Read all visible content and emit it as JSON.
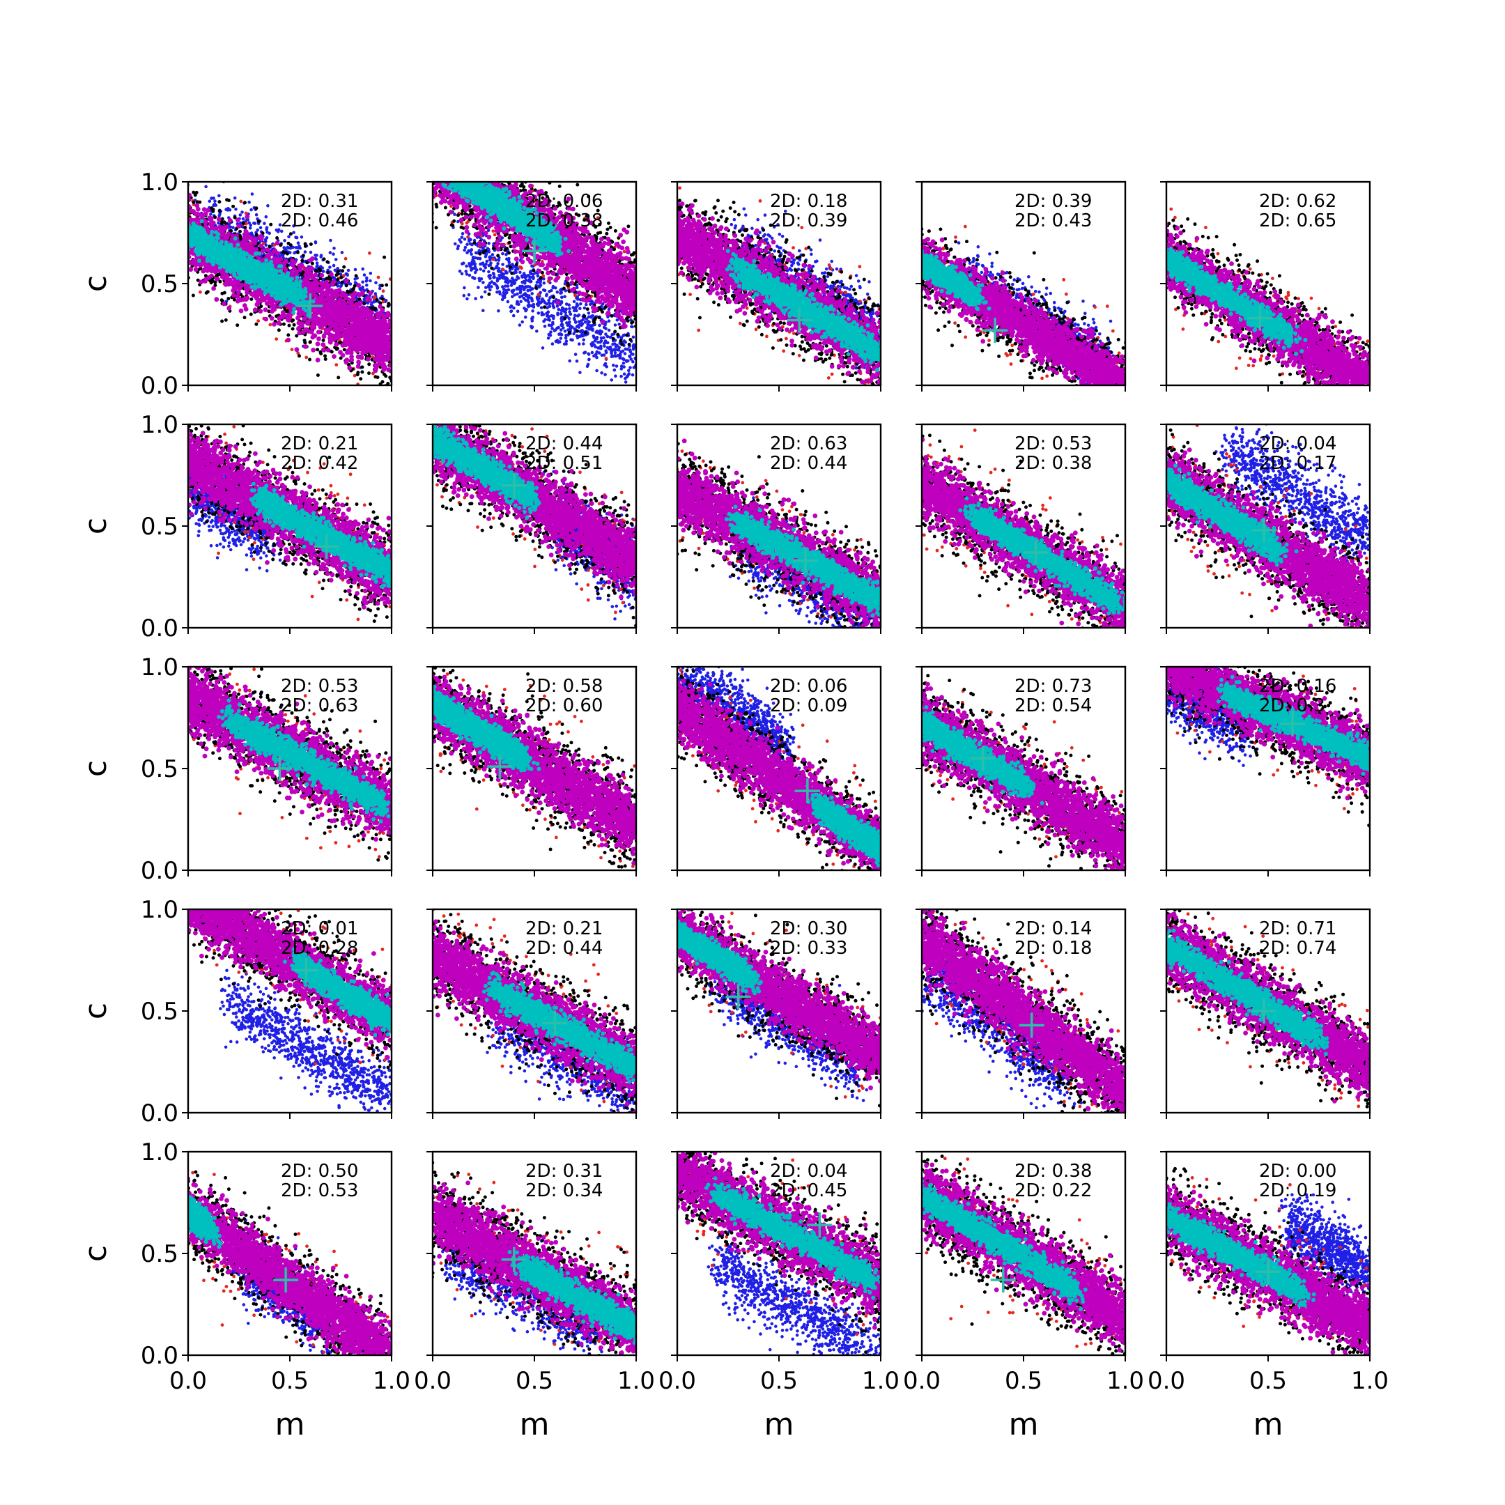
{
  "chart_data": {
    "type": "scatter",
    "layout": "5x5 grid of subplots",
    "xlabel": "m",
    "ylabel": "c",
    "xlim": [
      0.0,
      1.0
    ],
    "ylim": [
      0.0,
      1.0
    ],
    "xticks": [
      "0.0",
      "0.5",
      "1.0"
    ],
    "yticks": [
      "0.0",
      "0.5",
      "1.0"
    ],
    "grid": false,
    "series_colors": {
      "blue": "#1f1fe6",
      "red": "#e6261f",
      "black": "#000000",
      "magenta": "#bf00bf",
      "cyan": "#00bfbf",
      "marker_cross": "#2bbfaa"
    },
    "panels": [
      {
        "row": 0,
        "col": 0,
        "ann1": "2D: 0.31",
        "ann2": "2D: 0.46",
        "slope": -0.55,
        "icpt": 0.74,
        "width": 0.25,
        "cyan_x": [
          0.0,
          0.55
        ],
        "blue_shift": 0.12,
        "blue_x": [
          0.1,
          0.95
        ],
        "cross": [
          0.6,
          0.39
        ]
      },
      {
        "row": 0,
        "col": 1,
        "ann1": "2D: 0.06",
        "ann2": "2D: 0.38",
        "slope": -0.65,
        "icpt": 1.1,
        "width": 0.27,
        "cyan_x": [
          0.0,
          0.6
        ],
        "blue_shift": -0.32,
        "blue_x": [
          0.15,
          1.0
        ],
        "cross": [
          0.5,
          0.66
        ]
      },
      {
        "row": 0,
        "col": 2,
        "ann1": "2D: 0.18",
        "ann2": "2D: 0.39",
        "slope": -0.58,
        "icpt": 0.74,
        "width": 0.25,
        "cyan_x": [
          0.3,
          1.0
        ],
        "blue_shift": 0.1,
        "blue_x": [
          0.3,
          1.0
        ],
        "cross": [
          0.6,
          0.32
        ]
      },
      {
        "row": 0,
        "col": 3,
        "ann1": "2D: 0.39",
        "ann2": "2D: 0.43",
        "slope": -0.6,
        "icpt": 0.6,
        "width": 0.2,
        "cyan_x": [
          0.0,
          0.25
        ],
        "blue_shift": 0.06,
        "blue_x": [
          0.2,
          0.95
        ],
        "cross": [
          0.36,
          0.27
        ]
      },
      {
        "row": 0,
        "col": 4,
        "ann1": "2D: 0.62",
        "ann2": "2D: 0.65",
        "slope": -0.62,
        "icpt": 0.62,
        "width": 0.22,
        "cyan_x": [
          0.0,
          0.6
        ],
        "blue_shift": 0.0,
        "blue_x": [
          0.0,
          0.0
        ],
        "cross": [
          0.46,
          0.33
        ]
      },
      {
        "row": 1,
        "col": 0,
        "ann1": "2D: 0.21",
        "ann2": "2D: 0.42",
        "slope": -0.55,
        "icpt": 0.82,
        "width": 0.25,
        "cyan_x": [
          0.35,
          1.0
        ],
        "blue_shift": -0.12,
        "blue_x": [
          0.0,
          0.4
        ],
        "cross": [
          0.68,
          0.4
        ]
      },
      {
        "row": 1,
        "col": 1,
        "ann1": "2D: 0.44",
        "ann2": "2D: 0.51",
        "slope": -0.6,
        "icpt": 0.93,
        "width": 0.25,
        "cyan_x": [
          0.0,
          0.48
        ],
        "blue_shift": -0.05,
        "blue_x": [
          0.6,
          1.0
        ],
        "cross": [
          0.4,
          0.7
        ]
      },
      {
        "row": 1,
        "col": 2,
        "ann1": "2D: 0.63",
        "ann2": "2D: 0.44",
        "slope": -0.55,
        "icpt": 0.68,
        "width": 0.25,
        "cyan_x": [
          0.3,
          1.0
        ],
        "blue_shift": -0.1,
        "blue_x": [
          0.3,
          1.0
        ],
        "cross": [
          0.63,
          0.33
        ]
      },
      {
        "row": 1,
        "col": 3,
        "ann1": "2D: 0.53",
        "ann2": "2D: 0.38",
        "slope": -0.6,
        "icpt": 0.7,
        "width": 0.24,
        "cyan_x": [
          0.25,
          0.95
        ],
        "blue_shift": 0.0,
        "blue_x": [
          0.0,
          0.0
        ],
        "cross": [
          0.56,
          0.37
        ]
      },
      {
        "row": 1,
        "col": 4,
        "ann1": "2D: 0.04",
        "ann2": "2D: 0.17",
        "slope": -0.6,
        "icpt": 0.72,
        "width": 0.25,
        "cyan_x": [
          0.0,
          0.55
        ],
        "blue_shift": 0.32,
        "blue_x": [
          0.3,
          1.0
        ],
        "cross": [
          0.48,
          0.48
        ]
      },
      {
        "row": 2,
        "col": 0,
        "ann1": "2D: 0.53",
        "ann2": "2D: 0.63",
        "slope": -0.55,
        "icpt": 0.85,
        "width": 0.25,
        "cyan_x": [
          0.2,
          0.95
        ],
        "blue_shift": 0.0,
        "blue_x": [
          0.0,
          0.0
        ],
        "cross": [
          0.45,
          0.5
        ]
      },
      {
        "row": 2,
        "col": 1,
        "ann1": "2D: 0.58",
        "ann2": "2D: 0.60",
        "slope": -0.6,
        "icpt": 0.82,
        "width": 0.25,
        "cyan_x": [
          0.0,
          0.45
        ],
        "blue_shift": 0.0,
        "blue_x": [
          0.0,
          0.0
        ],
        "cross": [
          0.33,
          0.51
        ]
      },
      {
        "row": 2,
        "col": 2,
        "ann1": "2D: 0.06",
        "ann2": "2D: 0.09",
        "slope": -0.7,
        "icpt": 0.8,
        "width": 0.23,
        "cyan_x": [
          0.7,
          1.0
        ],
        "blue_shift": 0.18,
        "blue_x": [
          0.0,
          0.55
        ],
        "cross": [
          0.64,
          0.39
        ]
      },
      {
        "row": 2,
        "col": 3,
        "ann1": "2D: 0.73",
        "ann2": "2D: 0.54",
        "slope": -0.6,
        "icpt": 0.72,
        "width": 0.25,
        "cyan_x": [
          0.0,
          0.5
        ],
        "blue_shift": 0.0,
        "blue_x": [
          0.0,
          0.0
        ],
        "cross": [
          0.3,
          0.55
        ]
      },
      {
        "row": 2,
        "col": 4,
        "ann1": "2D: 0.16",
        "ann2": "2D: 0.3",
        "slope": -0.45,
        "icpt": 1.0,
        "width": 0.24,
        "cyan_x": [
          0.3,
          1.0
        ],
        "blue_shift": -0.1,
        "blue_x": [
          0.0,
          0.4
        ],
        "cross": [
          0.62,
          0.72
        ]
      },
      {
        "row": 3,
        "col": 0,
        "ann1": "2D: 0.01",
        "ann2": "2D: 0.28",
        "slope": -0.6,
        "icpt": 1.05,
        "width": 0.23,
        "cyan_x": [
          0.55,
          1.0
        ],
        "blue_shift": -0.38,
        "blue_x": [
          0.2,
          1.0
        ],
        "cross": [
          0.58,
          0.7
        ]
      },
      {
        "row": 3,
        "col": 1,
        "ann1": "2D: 0.21",
        "ann2": "2D: 0.44",
        "slope": -0.55,
        "icpt": 0.77,
        "width": 0.25,
        "cyan_x": [
          0.3,
          1.0
        ],
        "blue_shift": -0.13,
        "blue_x": [
          0.3,
          1.0
        ],
        "cross": [
          0.6,
          0.44
        ]
      },
      {
        "row": 3,
        "col": 2,
        "ann1": "2D: 0.30",
        "ann2": "2D: 0.33",
        "slope": -0.6,
        "icpt": 0.88,
        "width": 0.22,
        "cyan_x": [
          0.0,
          0.35
        ],
        "blue_shift": -0.12,
        "blue_x": [
          0.2,
          0.9
        ],
        "cross": [
          0.3,
          0.57
        ]
      },
      {
        "row": 3,
        "col": 3,
        "ann1": "2D: 0.14",
        "ann2": "2D: 0.18",
        "slope": -0.75,
        "icpt": 0.85,
        "width": 0.25,
        "cyan_x": [
          0.0,
          0.0
        ],
        "blue_shift": -0.15,
        "blue_x": [
          0.0,
          0.7
        ],
        "cross": [
          0.54,
          0.43
        ]
      },
      {
        "row": 3,
        "col": 4,
        "ann1": "2D: 0.71",
        "ann2": "2D: 0.74",
        "slope": -0.6,
        "icpt": 0.82,
        "width": 0.25,
        "cyan_x": [
          0.0,
          0.75
        ],
        "blue_shift": 0.0,
        "blue_x": [
          0.0,
          0.0
        ],
        "cross": [
          0.48,
          0.5
        ]
      },
      {
        "row": 4,
        "col": 0,
        "ann1": "2D: 0.50",
        "ann2": "2D: 0.53",
        "slope": -0.7,
        "icpt": 0.7,
        "width": 0.22,
        "cyan_x": [
          0.0,
          0.08
        ],
        "blue_shift": -0.06,
        "blue_x": [
          0.25,
          0.7
        ],
        "cross": [
          0.48,
          0.37
        ]
      },
      {
        "row": 4,
        "col": 1,
        "ann1": "2D: 0.31",
        "ann2": "2D: 0.34",
        "slope": -0.55,
        "icpt": 0.68,
        "width": 0.25,
        "cyan_x": [
          0.45,
          1.0
        ],
        "blue_shift": -0.12,
        "blue_x": [
          0.05,
          0.8
        ],
        "cross": [
          0.4,
          0.47
        ]
      },
      {
        "row": 4,
        "col": 2,
        "ann1": "2D: 0.04",
        "ann2": "2D: 0.45",
        "slope": -0.55,
        "icpt": 0.9,
        "width": 0.24,
        "cyan_x": [
          0.2,
          0.95
        ],
        "blue_shift": -0.35,
        "blue_x": [
          0.2,
          1.0
        ],
        "cross": [
          0.7,
          0.64
        ]
      },
      {
        "row": 4,
        "col": 3,
        "ann1": "2D: 0.38",
        "ann2": "2D: 0.22",
        "slope": -0.6,
        "icpt": 0.78,
        "width": 0.25,
        "cyan_x": [
          0.0,
          0.75
        ],
        "blue_shift": 0.0,
        "blue_x": [
          0.0,
          0.0
        ],
        "cross": [
          0.4,
          0.37
        ]
      },
      {
        "row": 4,
        "col": 4,
        "ann1": "2D: 0.00",
        "ann2": "2D: 0.19",
        "slope": -0.55,
        "icpt": 0.68,
        "width": 0.24,
        "cyan_x": [
          0.0,
          0.65
        ],
        "blue_shift": 0.28,
        "blue_x": [
          0.6,
          1.0
        ],
        "cross": [
          0.5,
          0.41
        ]
      }
    ]
  }
}
